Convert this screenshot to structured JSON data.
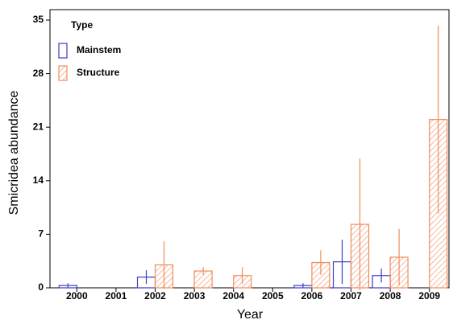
{
  "chart_data": {
    "type": "bar",
    "x_label": "Year",
    "y_label": "Smicridea abundance",
    "legend_title": "Type",
    "categories": [
      "2000",
      "2001",
      "2002",
      "2003",
      "2004",
      "2005",
      "2006",
      "2007",
      "2008",
      "2009"
    ],
    "series": [
      {
        "name": "Mainstem",
        "color": "#3b3bc4",
        "hatch": false,
        "values": [
          0.3,
          null,
          1.4,
          null,
          null,
          null,
          0.3,
          3.4,
          1.6,
          null
        ],
        "errors": [
          0.3,
          null,
          0.9,
          null,
          null,
          null,
          0.3,
          2.9,
          0.9,
          null
        ]
      },
      {
        "name": "Structure",
        "color": "#f08a5d",
        "hatch": true,
        "values": [
          null,
          null,
          3.0,
          2.2,
          1.6,
          null,
          3.3,
          8.3,
          4.0,
          22.0
        ],
        "errors": [
          null,
          null,
          3.1,
          0.5,
          1.1,
          null,
          1.6,
          8.6,
          3.7,
          12.3
        ]
      }
    ],
    "ylim": [
      0,
      35
    ],
    "yticks": [
      0,
      7,
      14,
      21,
      28,
      35
    ],
    "grid": false
  }
}
